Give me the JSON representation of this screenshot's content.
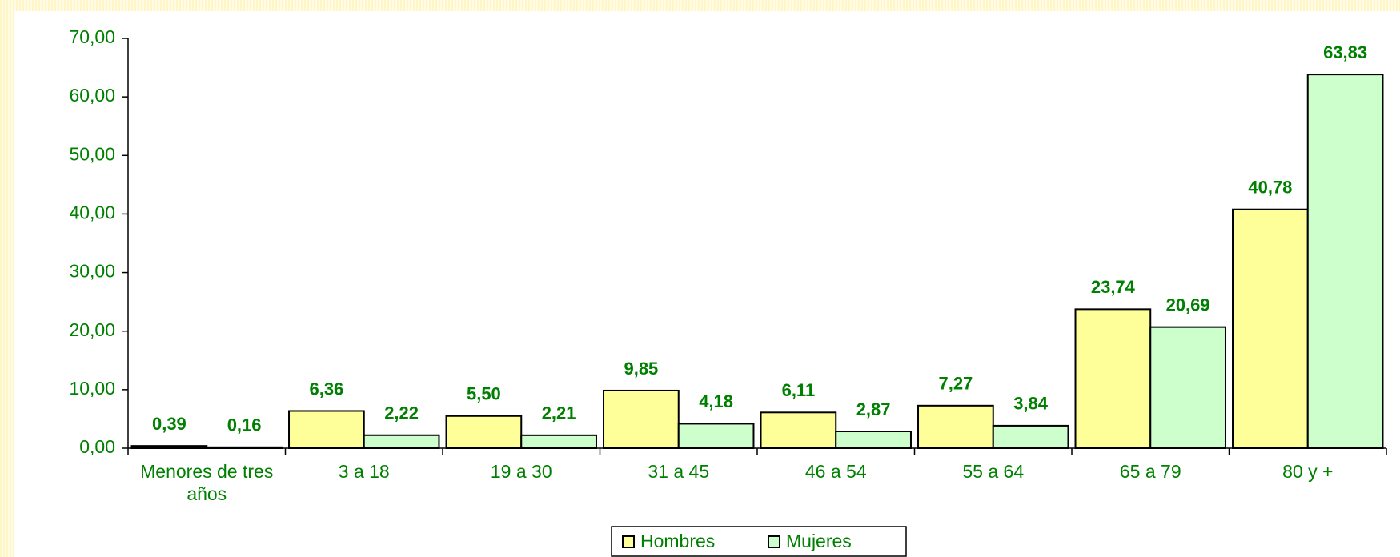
{
  "chart_data": {
    "type": "bar",
    "categories": [
      "Menores de tres años",
      "3 a 18",
      "19 a 30",
      "31 a 45",
      "46 a 54",
      "55 a 64",
      "65 a 79",
      "80 y +"
    ],
    "series": [
      {
        "name": "Hombres",
        "color": "#ffff99",
        "values": [
          0.39,
          6.36,
          5.5,
          9.85,
          6.11,
          7.27,
          23.74,
          40.78
        ],
        "value_labels": [
          "0,39",
          "6,36",
          "5,50",
          "9,85",
          "6,11",
          "7,27",
          "23,74",
          "40,78"
        ]
      },
      {
        "name": "Mujeres",
        "color": "#ccffcc",
        "values": [
          0.16,
          2.22,
          2.21,
          4.18,
          2.87,
          3.84,
          20.69,
          63.83
        ],
        "value_labels": [
          "0,16",
          "2,22",
          "2,21",
          "4,18",
          "2,87",
          "3,84",
          "20,69",
          "63,83"
        ]
      }
    ],
    "ylim": [
      0,
      70
    ],
    "yticks": [
      {
        "value": 0,
        "label": "0,00"
      },
      {
        "value": 10,
        "label": "10,00"
      },
      {
        "value": 20,
        "label": "20,00"
      },
      {
        "value": 30,
        "label": "30,00"
      },
      {
        "value": 40,
        "label": "40,00"
      },
      {
        "value": 50,
        "label": "50,00"
      },
      {
        "value": 60,
        "label": "60,00"
      },
      {
        "value": 70,
        "label": "70,00"
      }
    ],
    "legend": "bottom"
  }
}
